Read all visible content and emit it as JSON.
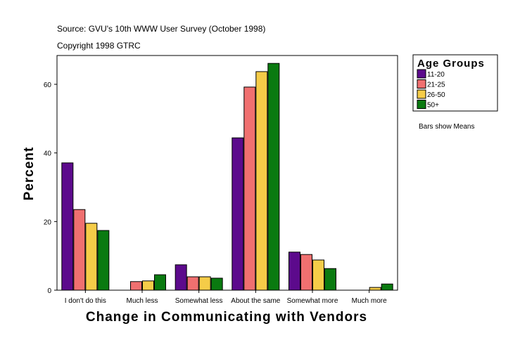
{
  "chart_data": {
    "type": "bar",
    "source": "Source: GVU's 10th WWW User Survey (October 1998)",
    "copyright": "Copyright 1998 GTRC",
    "xlabel": "Change in Communicating with Vendors",
    "ylabel": "Percent",
    "ylim": [
      0,
      68
    ],
    "yticks": [
      0,
      20,
      40,
      60
    ],
    "categories": [
      "I don't do this",
      "Much less",
      "Somewhat less",
      "About the same",
      "Somewhat more",
      "Much more"
    ],
    "legend_title": "Age Groups",
    "legend_position": "top-right",
    "note": "Bars show Means",
    "series": [
      {
        "name": "11-20",
        "color": "#5c0a8c",
        "values": [
          37.1,
          0,
          7.4,
          44.4,
          11.1,
          0
        ]
      },
      {
        "name": "21-25",
        "color": "#f07070",
        "values": [
          23.5,
          2.5,
          3.9,
          59.2,
          10.4,
          0
        ]
      },
      {
        "name": "26-50",
        "color": "#f5cc48",
        "values": [
          19.5,
          2.7,
          3.9,
          63.7,
          8.8,
          0.8
        ]
      },
      {
        "name": "50+",
        "color": "#0a7a10",
        "values": [
          17.4,
          4.5,
          3.5,
          66.1,
          6.3,
          1.8
        ]
      }
    ]
  }
}
